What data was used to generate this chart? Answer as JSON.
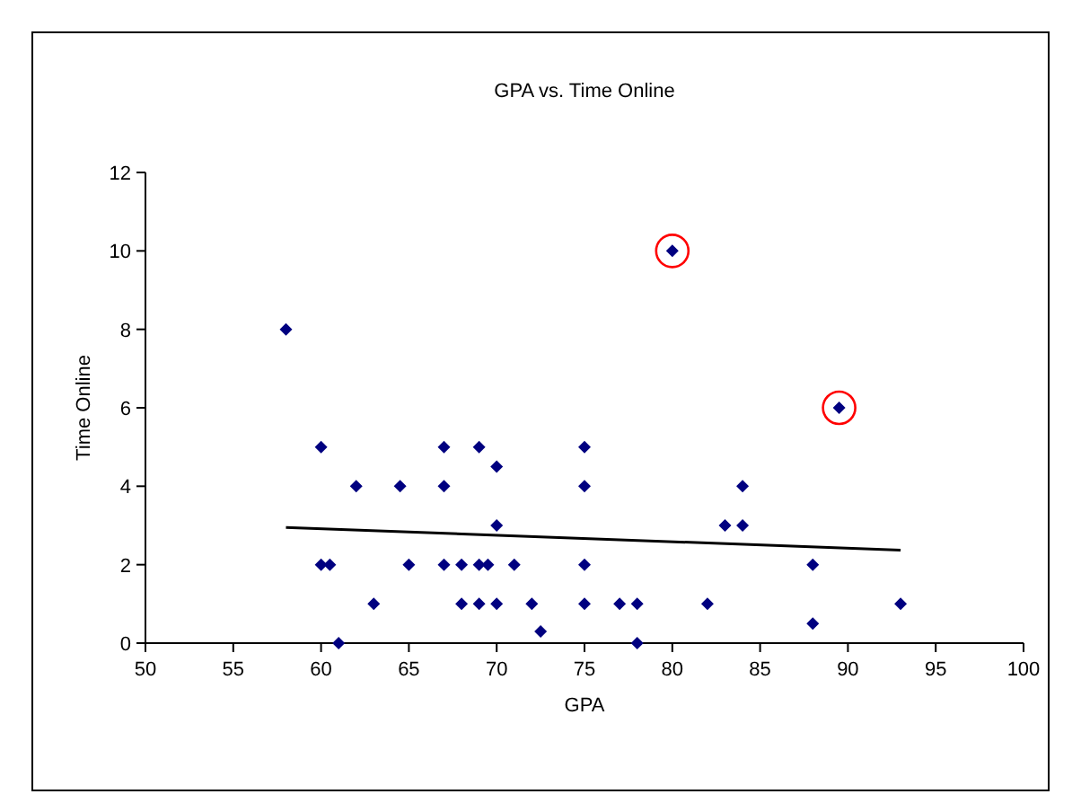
{
  "chart_data": {
    "type": "scatter",
    "title": "GPA vs. Time Online",
    "xlabel": "GPA",
    "ylabel": "Time Online",
    "xlim": [
      50,
      100
    ],
    "xticks": [
      50,
      55,
      60,
      65,
      70,
      75,
      80,
      85,
      90,
      95,
      100
    ],
    "ylim": [
      0,
      12
    ],
    "yticks": [
      0,
      2,
      4,
      6,
      8,
      10,
      12
    ],
    "grid": false,
    "series": [
      {
        "color": "#000080",
        "marker": "diamond",
        "x": [
          58,
          60,
          67,
          62,
          64.5,
          67,
          60,
          60.5,
          65,
          67,
          63,
          61,
          80,
          69,
          75,
          70,
          75,
          70,
          83,
          84,
          68,
          69,
          69.5,
          71,
          75,
          68,
          69,
          70,
          72,
          75,
          77,
          78,
          82,
          72.5,
          78,
          89.5,
          84,
          88,
          93,
          88
        ],
        "values": [
          8,
          5,
          5,
          4,
          4,
          4,
          2,
          2,
          2,
          2,
          1,
          0,
          10,
          5,
          5,
          4.5,
          4,
          3,
          3,
          3,
          2,
          2,
          2,
          2,
          2,
          1,
          1,
          1,
          1,
          1,
          1,
          1,
          1,
          0.3,
          0,
          6,
          4,
          2,
          1,
          0.5
        ]
      },
      {
        "type": "line",
        "color": "#000000",
        "marker": "none",
        "x": [
          58,
          93
        ],
        "values": [
          2.95,
          2.37
        ]
      },
      {
        "type": "scatter",
        "color": "#ff0000",
        "marker": "circle",
        "x": [
          80,
          89.5
        ],
        "values": [
          10,
          6
        ]
      }
    ]
  }
}
